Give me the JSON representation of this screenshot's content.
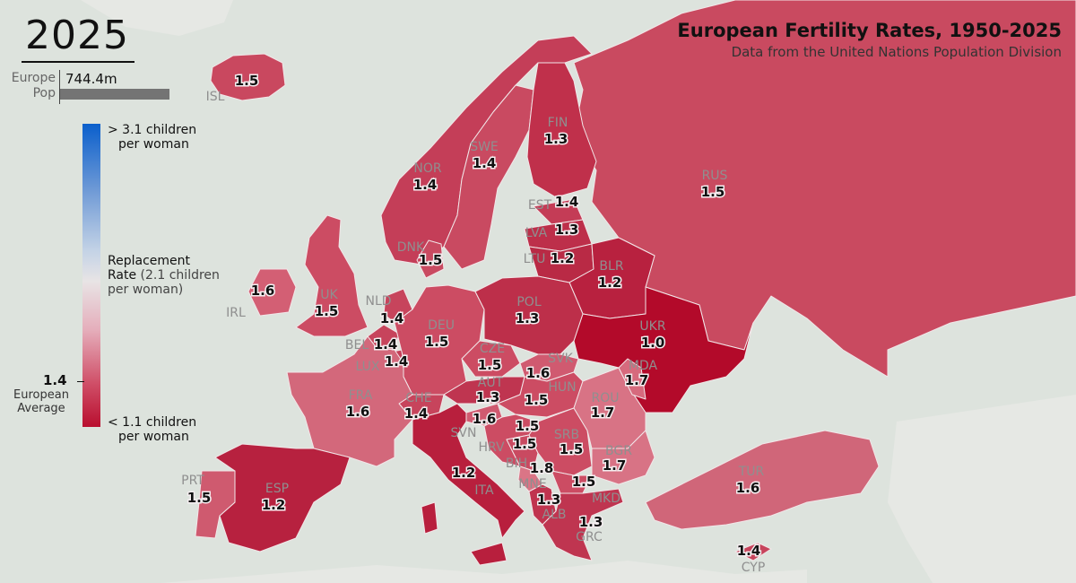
{
  "header": {
    "year": "2025",
    "pop_label_line1": "Europe",
    "pop_label_line2": "Pop",
    "pop_value": "744.4m",
    "title": "European Fertility Rates, 1950-2025",
    "subtitle": "Data from the United Nations Population Division"
  },
  "legend": {
    "high_line1": "> 3.1 children",
    "high_line2": "per woman",
    "mid_line1": "Replacement",
    "mid_line2": "Rate",
    "mid_line2_rest": " (2.1 children",
    "mid_line3": "per woman)",
    "low_line1": "< 1.1 children",
    "low_line2": "per woman",
    "average_value": "1.4",
    "average_line1": "European",
    "average_line2": "Average"
  },
  "colors": {
    "sea": "#dde3dd",
    "high": "#0a5fcc",
    "replacement": "#e8e4e5",
    "low": "#b90f2f",
    "border": "#f2e6e8",
    "non_europe": "#e4e7e4"
  },
  "countries": [
    {
      "code": "ISL",
      "value": "1.5",
      "shade": "#c9485f"
    },
    {
      "code": "NOR",
      "value": "1.4",
      "shade": "#c43e58"
    },
    {
      "code": "SWE",
      "value": "1.4",
      "shade": "#c94a61"
    },
    {
      "code": "FIN",
      "value": "1.3",
      "shade": "#c0304b"
    },
    {
      "code": "RUS",
      "value": "1.5",
      "shade": "#c94a60"
    },
    {
      "code": "EST",
      "value": "1.4",
      "shade": "#c43c56"
    },
    {
      "code": "LVA",
      "value": "1.3",
      "shade": "#bd2f4a"
    },
    {
      "code": "LTU",
      "value": "1.2",
      "shade": "#b92a45"
    },
    {
      "code": "DNK",
      "value": "1.5",
      "shade": "#c94a61"
    },
    {
      "code": "BLR",
      "value": "1.2",
      "shade": "#b8213f"
    },
    {
      "code": "IRL",
      "value": "1.6",
      "shade": "#d35f74"
    },
    {
      "code": "UK",
      "value": "1.5",
      "shade": "#cc4c63"
    },
    {
      "code": "NLD",
      "value": "1.4",
      "shade": "#c7445c"
    },
    {
      "code": "DEU",
      "value": "1.5",
      "shade": "#cc4c63"
    },
    {
      "code": "POL",
      "value": "1.3",
      "shade": "#bd2f4a"
    },
    {
      "code": "BEL",
      "value": "1.4",
      "shade": "#c7445c"
    },
    {
      "code": "LUX",
      "value": "1.4",
      "shade": "#c43e58"
    },
    {
      "code": "UKR",
      "value": "1.0",
      "shade": "#b30a2a"
    },
    {
      "code": "CZE",
      "value": "1.5",
      "shade": "#cc4c63"
    },
    {
      "code": "SVK",
      "value": "1.6",
      "shade": "#d05a70"
    },
    {
      "code": "HUN",
      "value": "1.5",
      "shade": "#cc4c63"
    },
    {
      "code": "MDA",
      "value": "1.7",
      "shade": "#d66a7d"
    },
    {
      "code": "FRA",
      "value": "1.6",
      "shade": "#d3687b"
    },
    {
      "code": "CHE",
      "value": "1.4",
      "shade": "#c7445c"
    },
    {
      "code": "AUT",
      "value": "1.3",
      "shade": "#bf3550"
    },
    {
      "code": "SVN",
      "value": "1.6",
      "shade": "#d05a70"
    },
    {
      "code": "ROU",
      "value": "1.7",
      "shade": "#d87385"
    },
    {
      "code": "HRV",
      "value": "1.5",
      "shade": "#cc4c63"
    },
    {
      "code": "SRB",
      "value": "1.5",
      "shade": "#cc4c63"
    },
    {
      "code": "BIH",
      "value": "1.5",
      "shade": "#c94a61"
    },
    {
      "code": "BGR",
      "value": "1.7",
      "shade": "#d87385"
    },
    {
      "code": "MNE",
      "value": "1.8",
      "shade": "#da7586"
    },
    {
      "code": "ITA",
      "value": "1.2",
      "shade": "#b81f3d"
    },
    {
      "code": "MKD",
      "value": "1.5",
      "shade": "#cc4c63"
    },
    {
      "code": "PRT",
      "value": "1.5",
      "shade": "#cf5a6f"
    },
    {
      "code": "ESP",
      "value": "1.2",
      "shade": "#b7213f"
    },
    {
      "code": "ALB",
      "value": "1.3",
      "shade": "#c0344f"
    },
    {
      "code": "GRC",
      "value": "1.3",
      "shade": "#bf3550"
    },
    {
      "code": "TUR",
      "value": "1.6",
      "shade": "#d06679"
    },
    {
      "code": "CYP",
      "value": "1.4",
      "shade": "#c7445c"
    }
  ]
}
